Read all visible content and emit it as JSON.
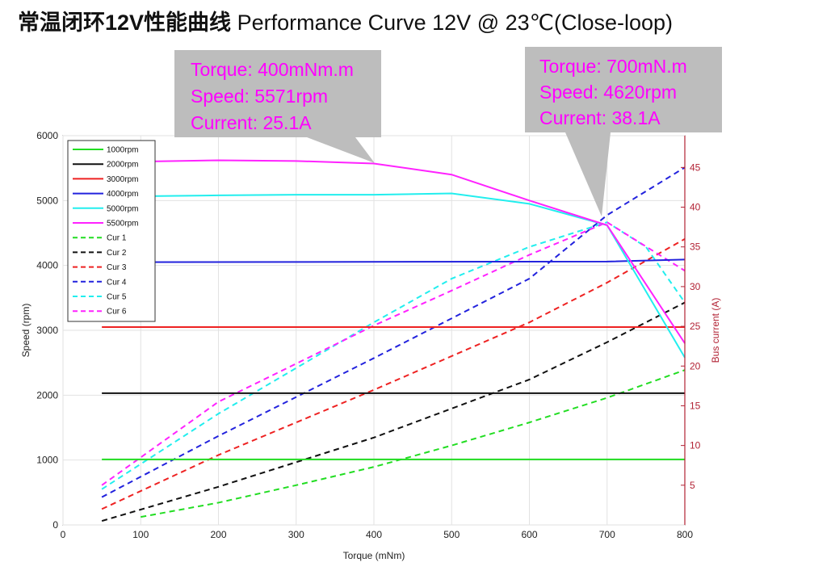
{
  "title": {
    "cn": "常温闭环12V性能曲线",
    "en": "Performance Curve 12V @ 23℃(Close-loop)"
  },
  "callouts": [
    {
      "torque": "Torque:  400mNm.m",
      "speed": "Speed:   5571rpm",
      "current": "Current: 25.1A"
    },
    {
      "torque": "Torque:  700mN.m",
      "speed": "Speed:   4620rpm",
      "current": "Current: 38.1A"
    }
  ],
  "chart_data": {
    "type": "line",
    "xlabel": "Torque (mNm)",
    "ylabel": "Speed (rpm)",
    "y2label": "Bus current (A)",
    "xlim": [
      0,
      800
    ],
    "ylim": [
      0,
      6000
    ],
    "y2lim": [
      0,
      49
    ],
    "xticks": [
      "0",
      "100",
      "200",
      "300",
      "400",
      "500",
      "600",
      "700",
      "800"
    ],
    "yticks": [
      "0",
      "1000",
      "2000",
      "3000",
      "4000",
      "5000",
      "6000"
    ],
    "y2ticks": [
      "5",
      "10",
      "15",
      "20",
      "25",
      "30",
      "35",
      "40",
      "45"
    ],
    "grid": true,
    "legend_position": "top-left",
    "speed_series": [
      {
        "name": "1000rpm",
        "color": "#22dd22",
        "points": [
          [
            50,
            1010
          ],
          [
            800,
            1010
          ]
        ]
      },
      {
        "name": "2000rpm",
        "color": "#111111",
        "points": [
          [
            50,
            2030
          ],
          [
            800,
            2030
          ]
        ]
      },
      {
        "name": "3000rpm",
        "color": "#ee2222",
        "points": [
          [
            50,
            3050
          ],
          [
            800,
            3050
          ]
        ]
      },
      {
        "name": "4000rpm",
        "color": "#2222dd",
        "points": [
          [
            50,
            4050
          ],
          [
            700,
            4060
          ],
          [
            800,
            4090
          ]
        ]
      },
      {
        "name": "5000rpm",
        "color": "#22eeee",
        "points": [
          [
            50,
            5060
          ],
          [
            200,
            5080
          ],
          [
            300,
            5090
          ],
          [
            400,
            5090
          ],
          [
            500,
            5110
          ],
          [
            600,
            4950
          ],
          [
            700,
            4620
          ],
          [
            800,
            2580
          ]
        ]
      },
      {
        "name": "5500rpm",
        "color": "#ff22ff",
        "points": [
          [
            50,
            5590
          ],
          [
            200,
            5620
          ],
          [
            300,
            5610
          ],
          [
            400,
            5571
          ],
          [
            500,
            5400
          ],
          [
            600,
            5000
          ],
          [
            700,
            4620
          ],
          [
            800,
            2800
          ]
        ]
      }
    ],
    "current_series": [
      {
        "name": "Cur 1",
        "color": "#22dd22",
        "points": [
          [
            100,
            1.0
          ],
          [
            200,
            2.8
          ],
          [
            300,
            5.0
          ],
          [
            400,
            7.3
          ],
          [
            500,
            10.0
          ],
          [
            600,
            12.9
          ],
          [
            700,
            16.0
          ],
          [
            800,
            19.5
          ]
        ]
      },
      {
        "name": "Cur 2",
        "color": "#111111",
        "points": [
          [
            50,
            0.5
          ],
          [
            200,
            4.8
          ],
          [
            400,
            11.0
          ],
          [
            600,
            18.3
          ],
          [
            700,
            23.0
          ],
          [
            800,
            28.0
          ]
        ]
      },
      {
        "name": "Cur 3",
        "color": "#ee2222",
        "points": [
          [
            50,
            2.0
          ],
          [
            200,
            8.8
          ],
          [
            400,
            17.0
          ],
          [
            600,
            25.5
          ],
          [
            700,
            30.5
          ],
          [
            800,
            36.0
          ]
        ]
      },
      {
        "name": "Cur 4",
        "color": "#2222dd",
        "points": [
          [
            50,
            3.5
          ],
          [
            200,
            11.2
          ],
          [
            400,
            21.0
          ],
          [
            600,
            31.0
          ],
          [
            700,
            39.0
          ],
          [
            800,
            45.0
          ]
        ]
      },
      {
        "name": "Cur 5",
        "color": "#22eeee",
        "points": [
          [
            50,
            4.5
          ],
          [
            200,
            14.0
          ],
          [
            400,
            25.5
          ],
          [
            500,
            31.0
          ],
          [
            600,
            35.0
          ],
          [
            700,
            38.1
          ],
          [
            750,
            35.0
          ],
          [
            800,
            28.0
          ]
        ]
      },
      {
        "name": "Cur 6",
        "color": "#ff22ff",
        "points": [
          [
            50,
            5.0
          ],
          [
            200,
            15.5
          ],
          [
            400,
            25.1
          ],
          [
            500,
            29.5
          ],
          [
            600,
            34.0
          ],
          [
            700,
            38.1
          ],
          [
            800,
            32.0
          ]
        ]
      }
    ]
  }
}
